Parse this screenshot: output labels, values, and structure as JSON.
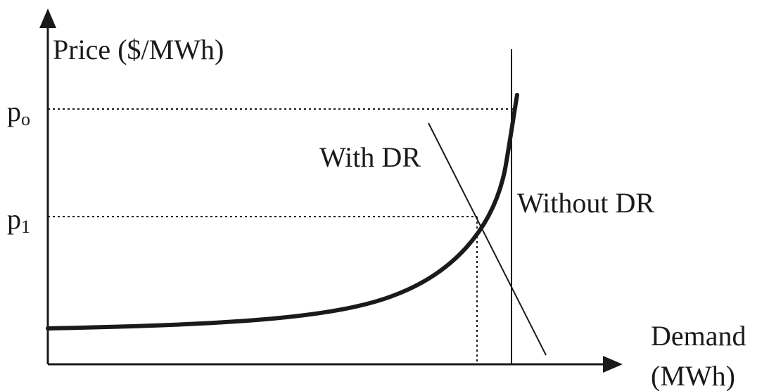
{
  "diagram": {
    "y_axis_label": "Price ($/MWh)",
    "x_axis_label_line1": "Demand",
    "x_axis_label_line2": "(MWh)",
    "price_p0_base": "p",
    "price_p0_sub": "o",
    "price_p1_base": "p",
    "price_p1_sub": "1",
    "with_dr_label": "With DR",
    "without_dr_label": "Without DR"
  },
  "colors": {
    "ink": "#1a1a1a",
    "background": "#ffffff"
  }
}
